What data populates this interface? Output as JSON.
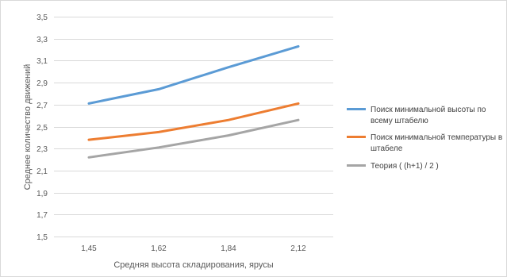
{
  "chart_data": {
    "type": "line",
    "xlabel": "Средняя высота складирования, ярусы",
    "ylabel": "Среднее количество движений",
    "categories": [
      "1,45",
      "1,62",
      "1,84",
      "2,12"
    ],
    "ylim": [
      1.5,
      3.5
    ],
    "yticks": [
      1.5,
      1.7,
      1.9,
      2.1,
      2.3,
      2.5,
      2.7,
      2.9,
      3.1,
      3.3,
      3.5
    ],
    "grid": true,
    "legend_position": "right",
    "series": [
      {
        "name_lines": [
          "Поиск минимальной высоты по",
          "всему штабелю"
        ],
        "color": "#5B9BD5",
        "values": [
          2.71,
          2.84,
          3.04,
          3.23
        ]
      },
      {
        "name_lines": [
          "Поиск минимальной температуры в",
          "штабеле"
        ],
        "color": "#ED7D31",
        "values": [
          2.38,
          2.45,
          2.56,
          2.71
        ]
      },
      {
        "name_lines": [
          "Теория ( (h+1) / 2 )"
        ],
        "color": "#A5A5A5",
        "values": [
          2.22,
          2.31,
          2.42,
          2.56
        ]
      }
    ]
  }
}
